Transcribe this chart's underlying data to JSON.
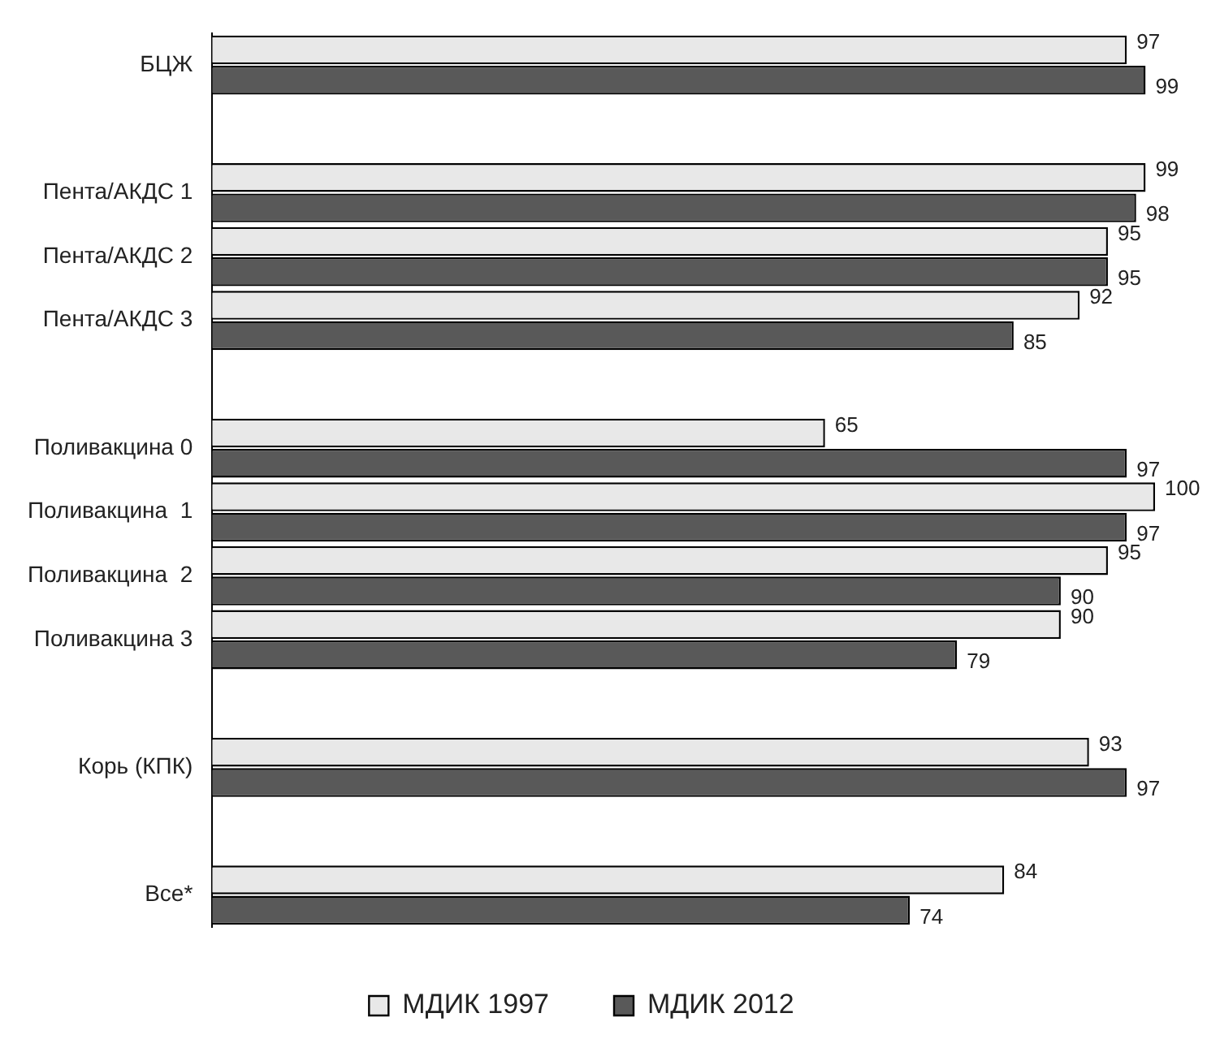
{
  "chart_data": {
    "type": "bar",
    "orientation": "horizontal",
    "categories": [
      "БЦЖ",
      null,
      "Пента/АКДС 1",
      "Пента/АКДС 2",
      "Пента/АКДС 3",
      null,
      "Поливакцина 0",
      "Поливакцина  1",
      "Поливакцина  2",
      "Поливакцина 3",
      null,
      "Корь (КПК)",
      null,
      "Все*"
    ],
    "series": [
      {
        "name": "МДИК 1997",
        "color": "#e8e8e8",
        "values": [
          97,
          null,
          99,
          95,
          92,
          null,
          65,
          100,
          95,
          90,
          null,
          93,
          null,
          84
        ]
      },
      {
        "name": "МДИК 2012",
        "color": "#595959",
        "values": [
          99,
          null,
          98,
          95,
          85,
          null,
          97,
          97,
          90,
          79,
          null,
          97,
          null,
          74
        ]
      }
    ],
    "xlim": [
      0,
      100
    ],
    "tick_labels": "y",
    "data_labels": true,
    "legend": "bottom"
  }
}
